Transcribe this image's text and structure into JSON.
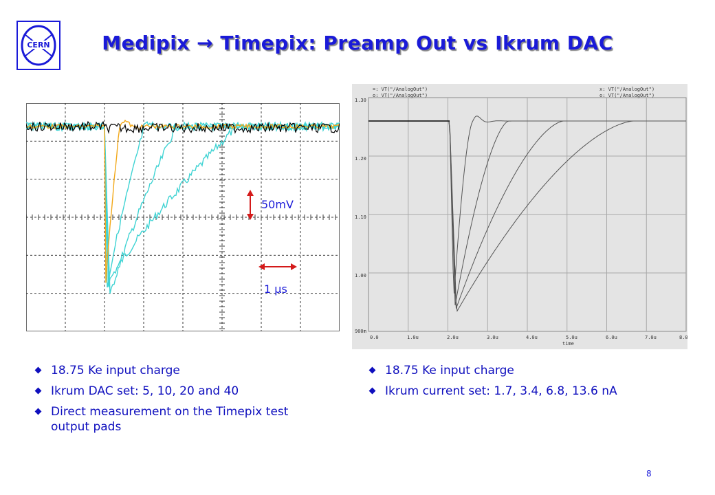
{
  "slide": {
    "title": "Medipix → Timepix: Preamp Out vs Ikrum DAC",
    "logo_text": "CERN",
    "page_number": "8",
    "accent_color": "#1a1ad8"
  },
  "scope": {
    "annotation_voltage": "50mV",
    "annotation_time": "1 µs",
    "trace_colors": [
      "#f2a818",
      "#3fd3d3",
      "#000000"
    ]
  },
  "sim": {
    "legend": [
      "=: VT(\"/AnalogOut\")",
      "o: VT(\"/AnalogOut\")",
      "x: VT(\"/AnalogOut\")",
      "o: VT(\"/AnalogOut\")"
    ],
    "y_ticks": [
      "1.30",
      "1.20",
      "1.10",
      "1.00",
      "900m"
    ],
    "x_ticks": [
      "0.0",
      "1.0u",
      "2.0u",
      "3.0u",
      "4.0u",
      "5.0u",
      "6.0u",
      "7.0u",
      "8.0"
    ],
    "x_label": "time"
  },
  "left_bullets": [
    "18.75 Ke input charge",
    "Ikrum DAC set: 5, 10, 20 and 40",
    "Direct measurement on the Timepix test output pads"
  ],
  "right_bullets": [
    "18.75 Ke input charge",
    "Ikrum current set: 1.7, 3.4, 6.8, 13.6 nA"
  ]
}
